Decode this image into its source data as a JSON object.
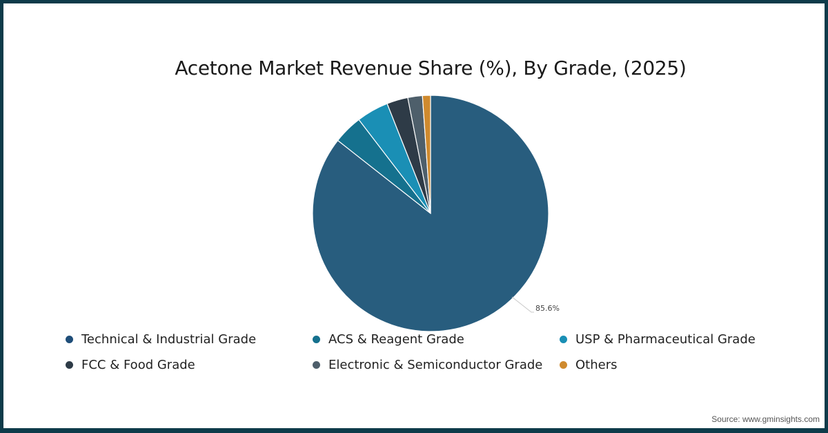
{
  "chart_data": {
    "type": "pie",
    "title": "Acetone Market Revenue Share (%), By Grade, (2025)",
    "categories": [
      "Technical & Industrial Grade",
      "ACS & Reagent Grade",
      "USP & Pharmaceutical Grade",
      "FCC & Food Grade",
      "Electronic & Semiconductor Grade",
      "Others"
    ],
    "values": [
      85.6,
      4.0,
      4.4,
      2.9,
      2.0,
      1.1
    ],
    "colors": [
      "#285d7e",
      "#15718e",
      "#1a8fb5",
      "#2e3b47",
      "#4e5f6b",
      "#cf8a2e"
    ],
    "data_labels": [
      {
        "category": "Technical & Industrial Grade",
        "text": "85.6%"
      }
    ],
    "start_angle": 0,
    "direction": "clockwise",
    "legend_position": "bottom",
    "xlabel": "",
    "ylabel": ""
  },
  "title": "Acetone Market Revenue Share (%), By Grade, (2025)",
  "data_label": "85.6%",
  "legend": {
    "items": [
      {
        "label": "Technical & Industrial Grade",
        "color": "#1f4e79"
      },
      {
        "label": "ACS & Reagent Grade",
        "color": "#15718e"
      },
      {
        "label": "USP & Pharmaceutical Grade",
        "color": "#1a8fb5"
      },
      {
        "label": "FCC & Food Grade",
        "color": "#2e3b47"
      },
      {
        "label": "Electronic & Semiconductor Grade",
        "color": "#4e5f6b"
      },
      {
        "label": "Others",
        "color": "#cf8a2e"
      }
    ]
  },
  "source": "Source: www.gminsights.com",
  "frame_color": "#0e3b4a"
}
